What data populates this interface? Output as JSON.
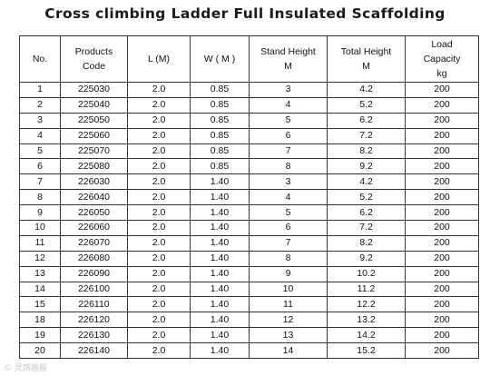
{
  "title": "Cross climbing Ladder Full Insulated Scaffolding",
  "table": {
    "headers": [
      "No.",
      "Products\nCode",
      "L (M)",
      "W ( M )",
      "Stand Height\nM",
      "Total Height\nM",
      "Load\nCapacity\nkg"
    ],
    "rows": [
      [
        "1",
        "225030",
        "2.0",
        "0.85",
        "3",
        "4.2",
        "200"
      ],
      [
        "2",
        "225040",
        "2.0",
        "0.85",
        "4",
        "5.2",
        "200"
      ],
      [
        "3",
        "225050",
        "2.0",
        "0.85",
        "5",
        "6.2",
        "200"
      ],
      [
        "4",
        "225060",
        "2.0",
        "0.85",
        "6",
        "7.2",
        "200"
      ],
      [
        "5",
        "225070",
        "2.0",
        "0.85",
        "7",
        "8.2",
        "200"
      ],
      [
        "6",
        "225080",
        "2.0",
        "0.85",
        "8",
        "9.2",
        "200"
      ],
      [
        "7",
        "226030",
        "2.0",
        "1.40",
        "3",
        "4.2",
        "200"
      ],
      [
        "8",
        "226040",
        "2.0",
        "1.40",
        "4",
        "5.2",
        "200"
      ],
      [
        "9",
        "226050",
        "2.0",
        "1.40",
        "5",
        "6.2",
        "200"
      ],
      [
        "10",
        "226060",
        "2.0",
        "1.40",
        "6",
        "7.2",
        "200"
      ],
      [
        "11",
        "226070",
        "2.0",
        "1.40",
        "7",
        "8.2",
        "200"
      ],
      [
        "12",
        "226080",
        "2.0",
        "1.40",
        "8",
        "9.2",
        "200"
      ],
      [
        "13",
        "226090",
        "2.0",
        "1.40",
        "9",
        "10.2",
        "200"
      ],
      [
        "14",
        "226100",
        "2.0",
        "1.40",
        "10",
        "11.2",
        "200"
      ],
      [
        "15",
        "226110",
        "2.0",
        "1.40",
        "11",
        "12.2",
        "200"
      ],
      [
        "18",
        "226120",
        "2.0",
        "1.40",
        "12",
        "13.2",
        "200"
      ],
      [
        "19",
        "226130",
        "2.0",
        "1.40",
        "13",
        "14.2",
        "200"
      ],
      [
        "20",
        "226140",
        "2.0",
        "1.40",
        "14",
        "15.2",
        "200"
      ]
    ]
  },
  "watermark": "© 灵感画报"
}
